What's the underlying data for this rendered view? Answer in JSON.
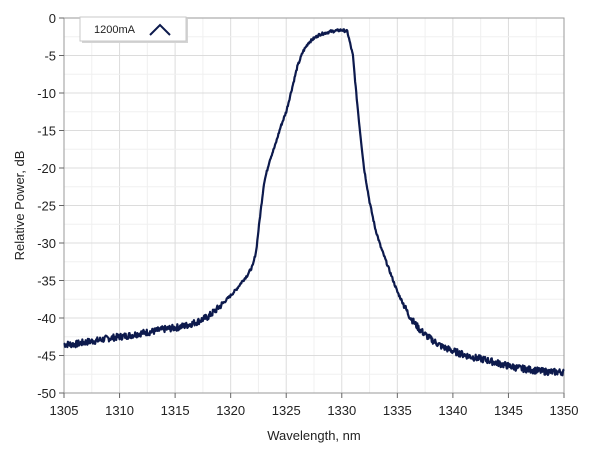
{
  "chart_data": {
    "type": "line",
    "xlabel": "Wavelength, nm",
    "ylabel": "Relative Power, dB",
    "xlim": [
      1305,
      1350
    ],
    "ylim": [
      -50,
      0
    ],
    "xticks": [
      1305,
      1310,
      1315,
      1320,
      1325,
      1330,
      1335,
      1340,
      1345,
      1350
    ],
    "yticks": [
      0,
      -5,
      -10,
      -15,
      -20,
      -25,
      -30,
      -35,
      -40,
      -45,
      -50
    ],
    "grid": true,
    "legend_position": "top-left",
    "series": [
      {
        "name": "1200mA",
        "color": "#0d1a4d",
        "x": [
          1305,
          1306,
          1307,
          1308,
          1309,
          1310,
          1311,
          1312,
          1313,
          1314,
          1315,
          1316,
          1317,
          1318,
          1319,
          1320,
          1320.5,
          1321,
          1321.5,
          1322,
          1322.3,
          1322.6,
          1323,
          1323.5,
          1324,
          1324.5,
          1325,
          1325.5,
          1326,
          1326.5,
          1327,
          1327.5,
          1328,
          1328.5,
          1329,
          1329.5,
          1330,
          1330.5,
          1331,
          1331.3,
          1331.6,
          1332,
          1332.5,
          1333,
          1333.5,
          1334,
          1334.5,
          1335,
          1335.5,
          1336,
          1336.5,
          1337,
          1337.5,
          1338,
          1338.5,
          1339,
          1339.5,
          1340,
          1341,
          1342,
          1343,
          1344,
          1345,
          1346,
          1347,
          1348,
          1349,
          1350
        ],
        "values": [
          -43.5,
          -43.5,
          -43.2,
          -43.0,
          -42.7,
          -42.5,
          -42.3,
          -42.0,
          -41.8,
          -41.5,
          -41.3,
          -41.0,
          -40.5,
          -39.8,
          -38.5,
          -37.0,
          -36.2,
          -35.2,
          -34.3,
          -33.0,
          -31.0,
          -27.0,
          -22.0,
          -19.0,
          -17.0,
          -14.5,
          -12.5,
          -9.5,
          -6.5,
          -4.5,
          -3.3,
          -2.7,
          -2.2,
          -2.0,
          -1.8,
          -1.7,
          -1.6,
          -1.8,
          -5.0,
          -10.0,
          -14.5,
          -20.0,
          -24.5,
          -28.0,
          -30.5,
          -32.5,
          -34.5,
          -36.5,
          -38.0,
          -39.5,
          -40.6,
          -41.5,
          -42.2,
          -42.8,
          -43.3,
          -43.8,
          -44.1,
          -44.4,
          -44.9,
          -45.3,
          -45.6,
          -46.0,
          -46.4,
          -46.7,
          -46.9,
          -47.1,
          -47.2,
          -47.2
        ]
      }
    ]
  }
}
